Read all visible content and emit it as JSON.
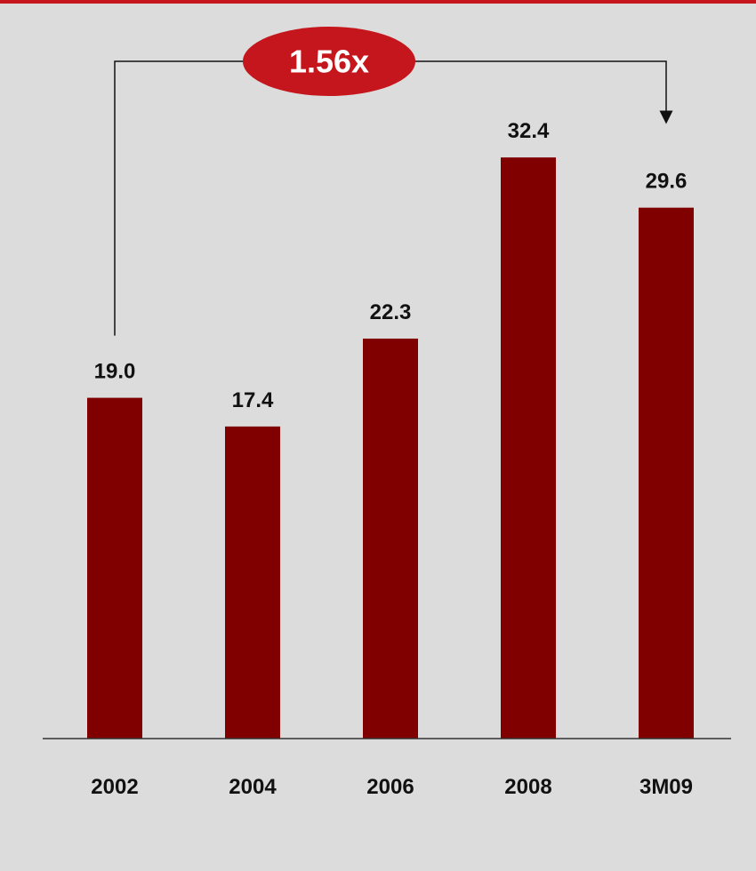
{
  "colors": {
    "background": "#dcdcdc",
    "bar": "#800000",
    "accent": "#c4161c",
    "text": "#111111"
  },
  "chart_data": {
    "type": "bar",
    "categories": [
      "2002",
      "2004",
      "2006",
      "2008",
      "3M09"
    ],
    "values": [
      19.0,
      17.4,
      22.3,
      32.4,
      29.6
    ],
    "value_labels": [
      "19.0",
      "17.4",
      "22.3",
      "32.4",
      "29.6"
    ],
    "ylim": [
      0,
      38.8
    ],
    "grid": false,
    "legend": "none",
    "annotations": [
      {
        "text": "1.56x",
        "from": "2002",
        "to": "3M09",
        "style": "bracket-arrow"
      }
    ]
  }
}
